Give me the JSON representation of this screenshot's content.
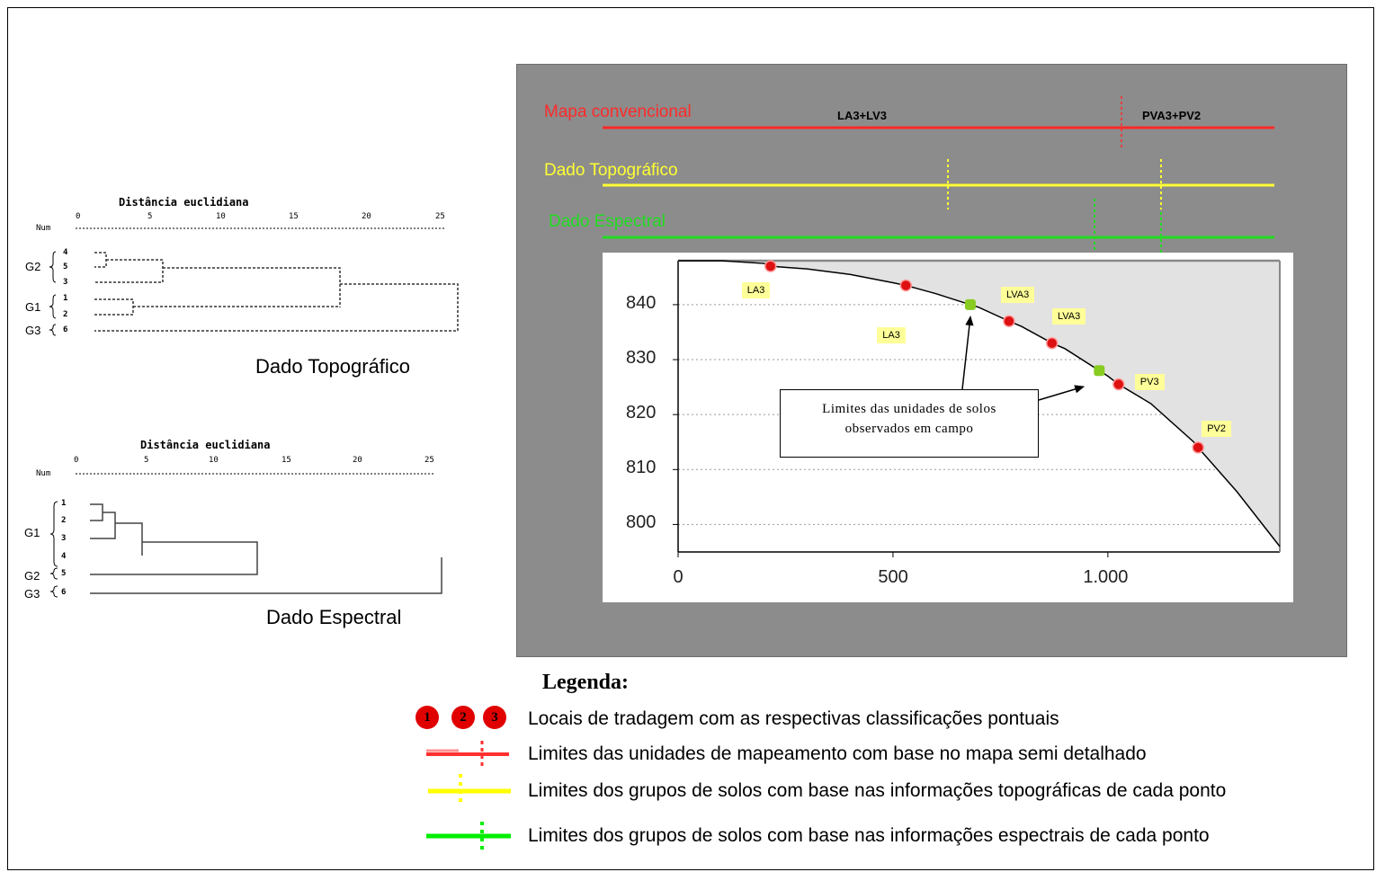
{
  "dendro_topo": {
    "title": "Distância euclidiana",
    "num_label": "Num",
    "ticks": [
      "0",
      "5",
      "10",
      "15",
      "20",
      "25"
    ],
    "leaves": [
      "4",
      "5",
      "3",
      "1",
      "2",
      "6"
    ],
    "groups": [
      "G2",
      "G1",
      "G3"
    ],
    "caption": "Dado Topográfico"
  },
  "dendro_spec": {
    "title": "Distância euclidiana",
    "num_label": "Num",
    "ticks": [
      "0",
      "5",
      "10",
      "15",
      "20",
      "25"
    ],
    "leaves": [
      "1",
      "2",
      "3",
      "4",
      "5",
      "6"
    ],
    "groups": [
      "G1",
      "G2",
      "G3"
    ],
    "caption": "Dado Espectral"
  },
  "tracks": {
    "map": {
      "label": "Mapa convencional",
      "unit_left": "LA3+LV3",
      "unit_right": "PVA3+PV2",
      "color": "#ff2a2a"
    },
    "topo": {
      "label": "Dado Topográfico",
      "color": "#ffff33"
    },
    "spec": {
      "label": "Dado Espectral",
      "color": "#22dd22"
    }
  },
  "chart_data": {
    "type": "line",
    "x": [
      0,
      100,
      200,
      215,
      300,
      400,
      500,
      530,
      600,
      680,
      700,
      770,
      800,
      870,
      900,
      980,
      1000,
      1025,
      1100,
      1200,
      1210,
      1300,
      1400
    ],
    "y": [
      848,
      848,
      847.5,
      847,
      846.5,
      845.5,
      844,
      843.5,
      842,
      840,
      839.5,
      837,
      836,
      833,
      832,
      828,
      827,
      825.5,
      822,
      815,
      814,
      806,
      796
    ],
    "xlim": [
      0,
      1400
    ],
    "ylim": [
      795,
      848
    ],
    "yticks": [
      "800",
      "810",
      "820",
      "830",
      "840"
    ],
    "xticks": [
      "0",
      "500",
      "1.000"
    ],
    "points": [
      {
        "x": 215,
        "y": 847,
        "kind": "sample",
        "label": "LA3"
      },
      {
        "x": 530,
        "y": 843.5,
        "kind": "sample",
        "label": "LA3"
      },
      {
        "x": 680,
        "y": 840,
        "kind": "boundary",
        "label": "LVA3"
      },
      {
        "x": 770,
        "y": 837,
        "kind": "sample",
        "label": "LVA3"
      },
      {
        "x": 870,
        "y": 833,
        "kind": "sample",
        "label": ""
      },
      {
        "x": 980,
        "y": 828,
        "kind": "boundary",
        "label": ""
      },
      {
        "x": 1025,
        "y": 825.5,
        "kind": "sample",
        "label": "PV3"
      },
      {
        "x": 1210,
        "y": 814,
        "kind": "sample",
        "label": "PV2"
      }
    ],
    "annotation": [
      "Limites das unidades de solos",
      "observados em campo"
    ]
  },
  "legend": {
    "title": "Legenda:",
    "dots": [
      "1",
      "2",
      "3"
    ],
    "items": [
      "Locais de tradagem com as respectivas classificações pontuais",
      "Limites das unidades de mapeamento com base no mapa semi detalhado",
      "Limites dos grupos de solos com base nas informações topográficas de cada ponto",
      "Limites dos grupos de solos com base nas informações espectrais de cada ponto"
    ],
    "colors": {
      "red": "#e00000",
      "yellow": "#ffff00",
      "green": "#00ee00"
    }
  }
}
